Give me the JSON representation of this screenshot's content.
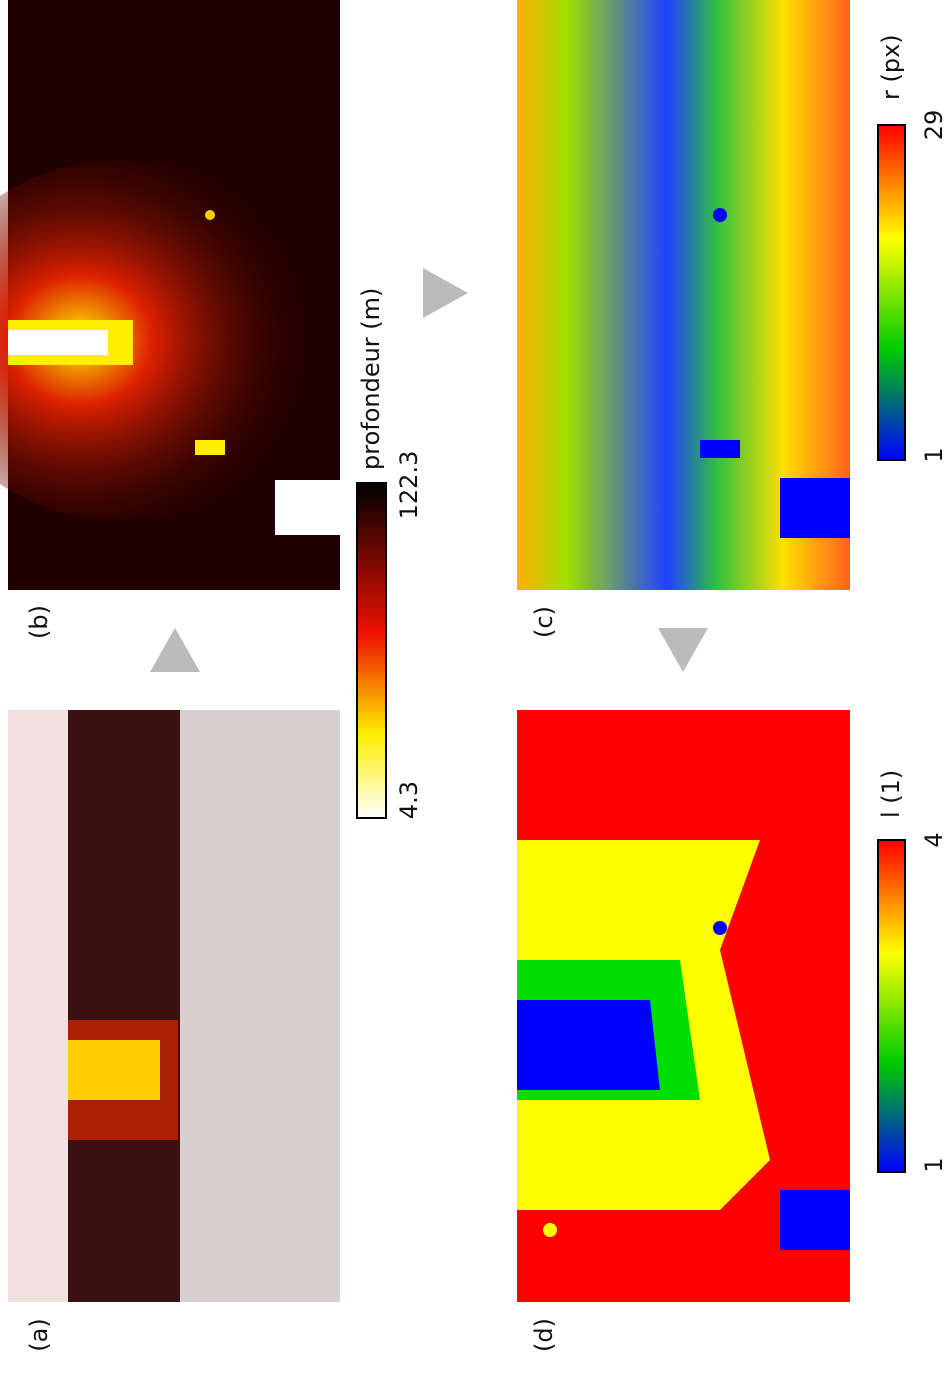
{
  "panels": [
    {
      "label": "(a)"
    },
    {
      "label": "(b)"
    },
    {
      "label": "(c)"
    },
    {
      "label": "(d)"
    }
  ],
  "colorbars": [
    {
      "title": "profondeur (m)",
      "min": 4.3,
      "max": 122.3
    },
    {
      "title": "r (px)",
      "min": 1,
      "max": 29
    },
    {
      "title": "l (1)",
      "min": 1,
      "max": 4
    }
  ]
}
